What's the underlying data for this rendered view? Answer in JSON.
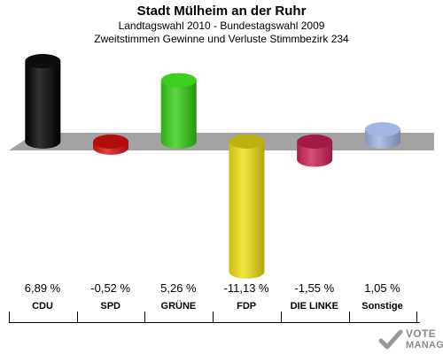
{
  "header": {
    "title": "Stadt Mülheim an der Ruhr",
    "subtitle1": "Landtagswahl 2010 - Bundestagswahl 2009",
    "subtitle2": "Zweitstimmen Gewinne und Verluste Stimmbezirk 234"
  },
  "chart_data": {
    "type": "bar",
    "categories": [
      "CDU",
      "SPD",
      "GRÜNE",
      "FDP",
      "DIE LINKE",
      "Sonstige"
    ],
    "values": [
      6.89,
      -0.52,
      5.26,
      -11.13,
      -1.55,
      1.05
    ],
    "labels": [
      "6,89 %",
      "-0,52 %",
      "5,26 %",
      "-11,13 %",
      "-1,55 %",
      "1,05 %"
    ],
    "colors": [
      "#000000",
      "#dd1111",
      "#33cc11",
      "#eedd11",
      "#cc2255",
      "#a0b0e0"
    ],
    "title": "Stadt Mülheim an der Ruhr",
    "ylim": [
      -11.13,
      6.89
    ]
  },
  "logo": {
    "name": "vote-manager-logo",
    "line1": "VOTE",
    "line2": "MANAGER"
  }
}
